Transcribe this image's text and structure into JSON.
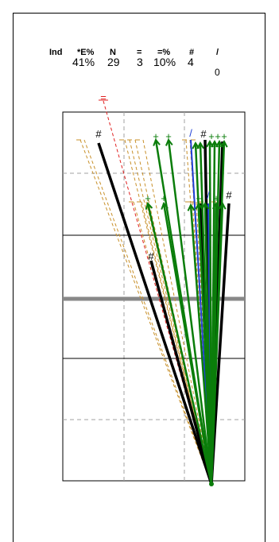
{
  "stats": {
    "labels": [
      "Ind",
      "*E%",
      "N",
      "=",
      "=%",
      "#",
      "/"
    ],
    "values": [
      "",
      "41%",
      "29",
      "3",
      "10%",
      "4",
      "0"
    ]
  },
  "markers": {
    "hash": "#",
    "plus": "+",
    "equal": "=",
    "slash": "/"
  },
  "colors": {
    "black": "#000000",
    "green": "#0a7d0a",
    "blue": "#1f3fd6",
    "orange_dashed": "#c8902a",
    "red_dashed": "#e02020",
    "midline": "#888888"
  }
}
